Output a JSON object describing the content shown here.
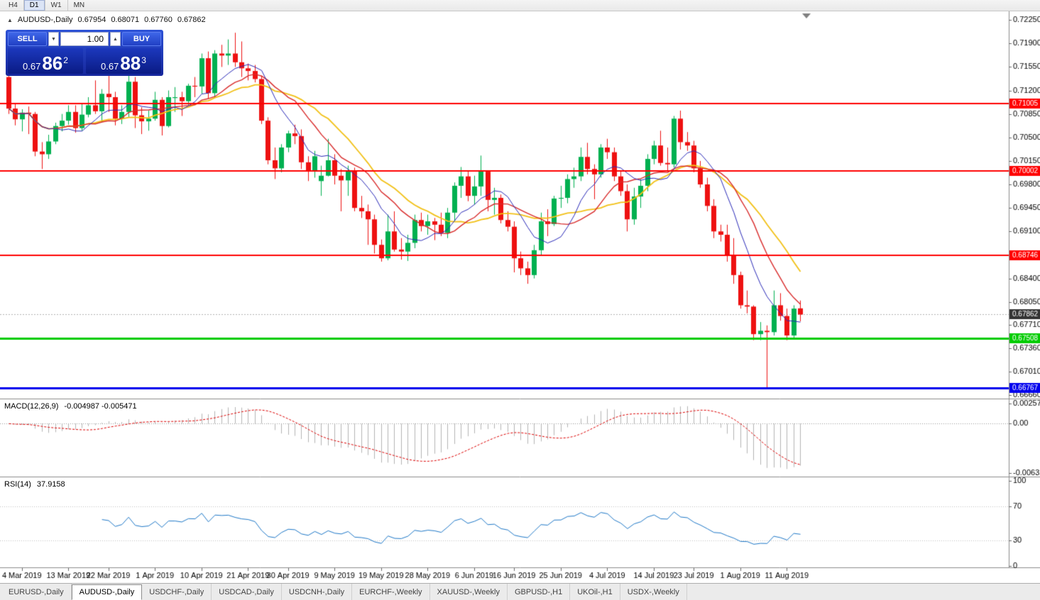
{
  "toolbar": {
    "timeframes": [
      {
        "label": "H4",
        "active": false
      },
      {
        "label": "D1",
        "active": true
      },
      {
        "label": "W1",
        "active": false
      },
      {
        "label": "MN",
        "active": false
      }
    ]
  },
  "chart": {
    "title_icon": "▲",
    "symbol_label": "AUDUSD-,Daily",
    "open": "0.67954",
    "high": "0.68071",
    "low": "0.67760",
    "close": "0.67862",
    "trade_panel": {
      "sell_label": "SELL",
      "buy_label": "BUY",
      "volume": "1.00",
      "spin_down_glyph": "▼",
      "spin_up_glyph": "▲",
      "sell_price_main": "0.67",
      "sell_price_big": "86",
      "sell_price_sup": "2",
      "buy_price_main": "0.67",
      "buy_price_big": "88",
      "buy_price_sup": "3"
    }
  },
  "indicators": {
    "macd": {
      "name": "MACD(12,26,9)",
      "values": "-0.004987 -0.005471"
    },
    "rsi": {
      "name": "RSI(14)",
      "value": "37.9158"
    }
  },
  "chart_data": {
    "type": "candlestick",
    "symbol": "AUDUSD",
    "timeframe": "Daily",
    "colors": {
      "bull": "#00b050",
      "bear": "#ee1111",
      "background": "#ffffff"
    },
    "current": {
      "price": 0.67862,
      "label": "0.67862",
      "badge": "#333333",
      "line": "#b4b4b4"
    },
    "hlines": [
      {
        "price": 0.71005,
        "label": "0.71005",
        "color": "#ff0000",
        "width": 2
      },
      {
        "price": 0.70002,
        "label": "0.70002",
        "color": "#ff0000",
        "width": 2
      },
      {
        "price": 0.68746,
        "label": "0.68746",
        "color": "#ff0000",
        "width": 2
      },
      {
        "price": 0.67508,
        "label": "0.67508",
        "color": "#00cc00",
        "width": 3
      },
      {
        "price": 0.66767,
        "label": "0.66767",
        "color": "#0000ee",
        "width": 3
      }
    ],
    "ma": [
      {
        "period": 8,
        "color": "#2929b8",
        "width": 1
      },
      {
        "period": 13,
        "color": "#d92b2b",
        "width": 1.4
      },
      {
        "period": 18,
        "color": "#f2c117",
        "width": 1.8
      }
    ],
    "price_axis_labels": [
      "0.72250",
      "0.71900",
      "0.71550",
      "0.71200",
      "0.70850",
      "0.70500",
      "0.70150",
      "0.69800",
      "0.69450",
      "0.69100",
      "0.68400",
      "0.68050",
      "0.67710",
      "0.67360",
      "0.67010",
      "0.66660"
    ],
    "date_labels": [
      {
        "i": 2,
        "t": "4 Mar 2019"
      },
      {
        "i": 9,
        "t": "13 Mar 2019"
      },
      {
        "i": 15,
        "t": "22 Mar 2019"
      },
      {
        "i": 22,
        "t": "1 Apr 2019"
      },
      {
        "i": 29,
        "t": "10 Apr 2019"
      },
      {
        "i": 36,
        "t": "21 Apr 2019"
      },
      {
        "i": 42,
        "t": "30 Apr 2019"
      },
      {
        "i": 49,
        "t": "9 May 2019"
      },
      {
        "i": 56,
        "t": "19 May 2019"
      },
      {
        "i": 63,
        "t": "28 May 2019"
      },
      {
        "i": 70,
        "t": "6 Jun 2019"
      },
      {
        "i": 76,
        "t": "16 Jun 2019"
      },
      {
        "i": 83,
        "t": "25 Jun 2019"
      },
      {
        "i": 90,
        "t": "4 Jul 2019"
      },
      {
        "i": 97,
        "t": "14 Jul 2019"
      },
      {
        "i": 103,
        "t": "23 Jul 2019"
      },
      {
        "i": 110,
        "t": "1 Aug 2019"
      },
      {
        "i": 117,
        "t": "11 Aug 2019"
      }
    ],
    "macd": {
      "fast": 12,
      "slow": 26,
      "signal": 9,
      "axis_labels": [
        "0.002574",
        "0.00",
        "-0.006326"
      ],
      "histogram_color": "#b4b4b4",
      "signal_color": "#dd0000"
    },
    "rsi": {
      "period": 14,
      "axis_labels": [
        "100",
        "70",
        "30",
        "0"
      ],
      "levels": [
        70,
        30
      ],
      "line_color": "#1e78c8"
    },
    "candles": [
      [
        0.714,
        0.7146,
        0.7085,
        0.7093
      ],
      [
        0.7093,
        0.7101,
        0.7068,
        0.7077
      ],
      [
        0.7077,
        0.7092,
        0.7059,
        0.7087
      ],
      [
        0.7087,
        0.7096,
        0.7055,
        0.7085
      ],
      [
        0.7085,
        0.7088,
        0.7022,
        0.7029
      ],
      [
        0.7029,
        0.7043,
        0.7003,
        0.7025
      ],
      [
        0.7025,
        0.7054,
        0.7018,
        0.7044
      ],
      [
        0.7044,
        0.7072,
        0.704,
        0.7067
      ],
      [
        0.7067,
        0.7085,
        0.7059,
        0.7075
      ],
      [
        0.7075,
        0.7098,
        0.7069,
        0.7088
      ],
      [
        0.7088,
        0.7098,
        0.7057,
        0.7064
      ],
      [
        0.7064,
        0.71,
        0.706,
        0.7084
      ],
      [
        0.7084,
        0.711,
        0.708,
        0.7098
      ],
      [
        0.7098,
        0.7135,
        0.7085,
        0.7089
      ],
      [
        0.7089,
        0.7122,
        0.7072,
        0.7115
      ],
      [
        0.7115,
        0.7168,
        0.7088,
        0.711
      ],
      [
        0.711,
        0.7118,
        0.7068,
        0.7078
      ],
      [
        0.7078,
        0.7098,
        0.707,
        0.7088
      ],
      [
        0.7088,
        0.7146,
        0.708,
        0.7133
      ],
      [
        0.7133,
        0.714,
        0.7064,
        0.7083
      ],
      [
        0.7083,
        0.7095,
        0.7055,
        0.7074
      ],
      [
        0.7074,
        0.709,
        0.706,
        0.7078
      ],
      [
        0.7078,
        0.7118,
        0.7075,
        0.7106
      ],
      [
        0.7106,
        0.711,
        0.7053,
        0.7067
      ],
      [
        0.7067,
        0.712,
        0.7065,
        0.711
      ],
      [
        0.711,
        0.7125,
        0.7088,
        0.711
      ],
      [
        0.711,
        0.7118,
        0.7082,
        0.7104
      ],
      [
        0.7104,
        0.713,
        0.7098,
        0.7127
      ],
      [
        0.7127,
        0.714,
        0.711,
        0.7126
      ],
      [
        0.7126,
        0.7175,
        0.7115,
        0.7168
      ],
      [
        0.7168,
        0.7178,
        0.7108,
        0.7116
      ],
      [
        0.7116,
        0.718,
        0.711,
        0.7175
      ],
      [
        0.7175,
        0.7188,
        0.7155,
        0.7172
      ],
      [
        0.7172,
        0.7196,
        0.7158,
        0.7175
      ],
      [
        0.7175,
        0.7206,
        0.7155,
        0.7162
      ],
      [
        0.7162,
        0.7193,
        0.714,
        0.7153
      ],
      [
        0.7153,
        0.716,
        0.7135,
        0.7149
      ],
      [
        0.7149,
        0.7158,
        0.7132,
        0.7137
      ],
      [
        0.7137,
        0.7142,
        0.707,
        0.7075
      ],
      [
        0.7075,
        0.708,
        0.701,
        0.7016
      ],
      [
        0.7016,
        0.7035,
        0.6988,
        0.7004
      ],
      [
        0.7004,
        0.704,
        0.6998,
        0.7035
      ],
      [
        0.7035,
        0.706,
        0.7028,
        0.7056
      ],
      [
        0.7056,
        0.7069,
        0.704,
        0.7052
      ],
      [
        0.7052,
        0.7062,
        0.7003,
        0.7013
      ],
      [
        0.7013,
        0.7022,
        0.6985,
        0.6999
      ],
      [
        0.6999,
        0.703,
        0.699,
        0.7022
      ],
      [
        0.6985,
        0.7008,
        0.6963,
        0.6993
      ],
      [
        0.6993,
        0.7048,
        0.6992,
        0.7016
      ],
      [
        0.7016,
        0.7025,
        0.698,
        0.6993
      ],
      [
        0.6993,
        0.7003,
        0.694,
        0.6986
      ],
      [
        0.6986,
        0.7008,
        0.6963,
        0.7
      ],
      [
        0.7,
        0.7005,
        0.694,
        0.6945
      ],
      [
        0.6945,
        0.6963,
        0.693,
        0.694
      ],
      [
        0.694,
        0.695,
        0.689,
        0.6928
      ],
      [
        0.6928,
        0.6935,
        0.6877,
        0.689
      ],
      [
        0.689,
        0.6898,
        0.6865,
        0.687
      ],
      [
        0.687,
        0.6935,
        0.6867,
        0.691
      ],
      [
        0.691,
        0.694,
        0.688,
        0.6883
      ],
      [
        0.6883,
        0.69,
        0.6868,
        0.688
      ],
      [
        0.688,
        0.6905,
        0.6866,
        0.6893
      ],
      [
        0.6893,
        0.6935,
        0.6885,
        0.6927
      ],
      [
        0.6927,
        0.6938,
        0.691,
        0.6918
      ],
      [
        0.6918,
        0.6935,
        0.6905,
        0.6925
      ],
      [
        0.6925,
        0.693,
        0.6897,
        0.692
      ],
      [
        0.692,
        0.6938,
        0.6903,
        0.6908
      ],
      [
        0.6908,
        0.6945,
        0.69,
        0.6938
      ],
      [
        0.6938,
        0.6983,
        0.6925,
        0.6978
      ],
      [
        0.6978,
        0.7006,
        0.696,
        0.6992
      ],
      [
        0.6992,
        0.7,
        0.6955,
        0.6963
      ],
      [
        0.6963,
        0.6993,
        0.695,
        0.6977
      ],
      [
        0.6977,
        0.7023,
        0.6963,
        0.6999
      ],
      [
        0.6999,
        0.7,
        0.694,
        0.6957
      ],
      [
        0.6957,
        0.6975,
        0.6935,
        0.696
      ],
      [
        0.696,
        0.6965,
        0.6922,
        0.6927
      ],
      [
        0.6927,
        0.694,
        0.691,
        0.6917
      ],
      [
        0.6917,
        0.6925,
        0.6849,
        0.687
      ],
      [
        0.687,
        0.688,
        0.6845,
        0.6855
      ],
      [
        0.6855,
        0.6865,
        0.6832,
        0.6845
      ],
      [
        0.6845,
        0.689,
        0.684,
        0.6882
      ],
      [
        0.6882,
        0.6938,
        0.6875,
        0.6925
      ],
      [
        0.6925,
        0.6943,
        0.6903,
        0.6921
      ],
      [
        0.6921,
        0.6963,
        0.6918,
        0.6959
      ],
      [
        0.6959,
        0.6978,
        0.6945,
        0.696
      ],
      [
        0.696,
        0.6995,
        0.6952,
        0.6988
      ],
      [
        0.6988,
        0.7005,
        0.6975,
        0.6992
      ],
      [
        0.6992,
        0.7035,
        0.6985,
        0.7021
      ],
      [
        0.7021,
        0.7042,
        0.6995,
        0.7003
      ],
      [
        0.7003,
        0.701,
        0.6958,
        0.6995
      ],
      [
        0.6995,
        0.704,
        0.699,
        0.7035
      ],
      [
        0.7035,
        0.7048,
        0.7018,
        0.7028
      ],
      [
        0.7028,
        0.7035,
        0.6985,
        0.6992
      ],
      [
        0.6992,
        0.7,
        0.6963,
        0.697
      ],
      [
        0.697,
        0.698,
        0.691,
        0.6928
      ],
      [
        0.6928,
        0.6975,
        0.692,
        0.6962
      ],
      [
        0.6962,
        0.6988,
        0.6945,
        0.6978
      ],
      [
        0.6978,
        0.7025,
        0.697,
        0.7018
      ],
      [
        0.7018,
        0.7045,
        0.701,
        0.7038
      ],
      [
        0.7038,
        0.706,
        0.7008,
        0.7012
      ],
      [
        0.7012,
        0.7035,
        0.7,
        0.701
      ],
      [
        0.701,
        0.7082,
        0.7005,
        0.7078
      ],
      [
        0.7078,
        0.709,
        0.7032,
        0.7043
      ],
      [
        0.7043,
        0.7058,
        0.703,
        0.7038
      ],
      [
        0.7038,
        0.7045,
        0.6998,
        0.7004
      ],
      [
        0.7004,
        0.7015,
        0.6975,
        0.698
      ],
      [
        0.698,
        0.699,
        0.694,
        0.6948
      ],
      [
        0.6948,
        0.6958,
        0.69,
        0.691
      ],
      [
        0.691,
        0.692,
        0.6895,
        0.6905
      ],
      [
        0.6905,
        0.692,
        0.6865,
        0.6874
      ],
      [
        0.6874,
        0.69,
        0.6832,
        0.6845
      ],
      [
        0.6845,
        0.685,
        0.6795,
        0.68
      ],
      [
        0.68,
        0.6822,
        0.6788,
        0.6798
      ],
      [
        0.6798,
        0.68,
        0.6748,
        0.6757
      ],
      [
        0.6757,
        0.6775,
        0.6748,
        0.6762
      ],
      [
        0.6762,
        0.677,
        0.6677,
        0.676
      ],
      [
        0.676,
        0.6822,
        0.6755,
        0.68
      ],
      [
        0.68,
        0.6818,
        0.6777,
        0.6784
      ],
      [
        0.6784,
        0.6795,
        0.6748,
        0.6755
      ],
      [
        0.6755,
        0.68,
        0.675,
        0.6795
      ],
      [
        0.67954,
        0.68071,
        0.6776,
        0.67862
      ]
    ]
  },
  "tabs": [
    {
      "label": "EURUSD-,Daily",
      "active": false
    },
    {
      "label": "AUDUSD-,Daily",
      "active": true
    },
    {
      "label": "USDCHF-,Daily",
      "active": false
    },
    {
      "label": "USDCAD-,Daily",
      "active": false
    },
    {
      "label": "USDCNH-,Daily",
      "active": false
    },
    {
      "label": "EURCHF-,Weekly",
      "active": false
    },
    {
      "label": "XAUUSD-,Weekly",
      "active": false
    },
    {
      "label": "GBPUSD-,H1",
      "active": false
    },
    {
      "label": "UKOil-,H1",
      "active": false
    },
    {
      "label": "USDX-,Weekly",
      "active": false
    }
  ]
}
